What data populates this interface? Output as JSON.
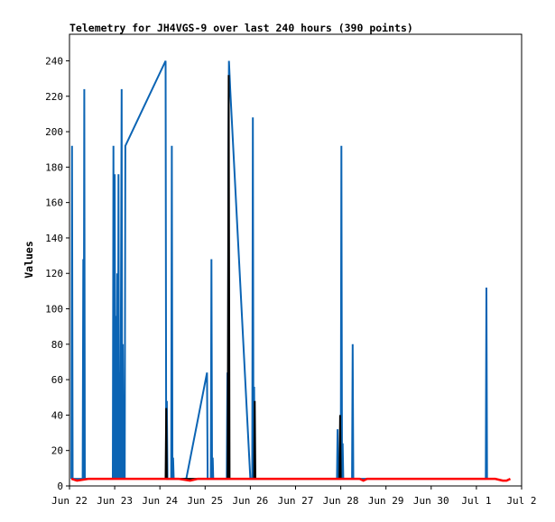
{
  "chart_data": {
    "type": "line",
    "title": "Telemetry for JH4VGS-9 over last 240 hours (390 points)",
    "xlabel": "",
    "ylabel": "Values",
    "xlim": [
      "2016-06-22",
      "2016-07-02"
    ],
    "ylim": [
      0,
      255
    ],
    "grid": false,
    "x_ticks": [
      {
        "label": "Jun 22",
        "date": "2016-06-22"
      },
      {
        "label": "Jun 23",
        "date": "2016-06-23"
      },
      {
        "label": "Jun 24",
        "date": "2016-06-24"
      },
      {
        "label": "Jun 25",
        "date": "2016-06-25"
      },
      {
        "label": "Jun 26",
        "date": "2016-06-26"
      },
      {
        "label": "Jun 27",
        "date": "2016-06-27"
      },
      {
        "label": "Jun 28",
        "date": "2016-06-28"
      },
      {
        "label": "Jun 29",
        "date": "2016-06-29"
      },
      {
        "label": "Jun 30",
        "date": "2016-06-30"
      },
      {
        "label": "Jul 1",
        "date": "2016-07-01"
      },
      {
        "label": "Jul 2",
        "date": "2016-07-02"
      }
    ],
    "y_ticks": [
      0,
      20,
      40,
      60,
      80,
      100,
      120,
      140,
      160,
      180,
      200,
      220,
      240
    ],
    "series": [
      {
        "color": "#0b64b4",
        "points": [
          [
            "2016-06-22 01:00",
            4
          ],
          [
            "2016-06-22 01:20",
            192
          ],
          [
            "2016-06-22 01:40",
            4
          ],
          [
            "2016-06-22 07:00",
            4
          ],
          [
            "2016-06-22 07:20",
            128
          ],
          [
            "2016-06-22 07:30",
            4
          ],
          [
            "2016-06-22 07:50",
            224
          ],
          [
            "2016-06-22 08:10",
            4
          ],
          [
            "2016-06-22 23:00",
            4
          ],
          [
            "2016-06-22 23:20",
            192
          ],
          [
            "2016-06-22 23:40",
            4
          ],
          [
            "2016-06-23 00:00",
            176
          ],
          [
            "2016-06-23 00:20",
            4
          ],
          [
            "2016-06-23 00:40",
            96
          ],
          [
            "2016-06-23 01:00",
            4
          ],
          [
            "2016-06-23 01:20",
            120
          ],
          [
            "2016-06-23 01:40",
            4
          ],
          [
            "2016-06-23 02:00",
            176
          ],
          [
            "2016-06-23 02:20",
            4
          ],
          [
            "2016-06-23 02:40",
            64
          ],
          [
            "2016-06-23 03:00",
            4
          ],
          [
            "2016-06-23 03:40",
            224
          ],
          [
            "2016-06-23 04:00",
            4
          ],
          [
            "2016-06-23 04:20",
            80
          ],
          [
            "2016-06-23 04:40",
            4
          ],
          [
            "2016-06-23 05:00",
            24
          ],
          [
            "2016-06-23 05:20",
            4
          ],
          [
            "2016-06-23 05:40",
            192
          ],
          [
            "2016-06-24 03:00",
            240
          ],
          [
            "2016-06-24 03:20",
            4
          ],
          [
            "2016-06-24 03:40",
            48
          ],
          [
            "2016-06-24 04:00",
            4
          ],
          [
            "2016-06-24 06:00",
            4
          ],
          [
            "2016-06-24 06:20",
            192
          ],
          [
            "2016-06-24 06:40",
            4
          ],
          [
            "2016-06-24 07:00",
            16
          ],
          [
            "2016-06-24 07:20",
            4
          ],
          [
            "2016-06-24 14:00",
            4
          ],
          [
            "2016-06-25 01:00",
            64
          ],
          [
            "2016-06-25 01:20",
            4
          ],
          [
            "2016-06-25 03:00",
            4
          ],
          [
            "2016-06-25 03:20",
            128
          ],
          [
            "2016-06-25 03:40",
            4
          ],
          [
            "2016-06-25 04:00",
            16
          ],
          [
            "2016-06-25 04:20",
            4
          ],
          [
            "2016-06-25 11:30",
            4
          ],
          [
            "2016-06-25 11:50",
            64
          ],
          [
            "2016-06-25 12:10",
            4
          ],
          [
            "2016-06-25 12:20",
            176
          ],
          [
            "2016-06-25 12:40",
            240
          ],
          [
            "2016-06-25 13:00",
            232
          ],
          [
            "2016-06-25 13:20",
            224
          ],
          [
            "2016-06-26 00:00",
            4
          ],
          [
            "2016-06-26 01:00",
            4
          ],
          [
            "2016-06-26 01:20",
            208
          ],
          [
            "2016-06-26 01:40",
            4
          ],
          [
            "2016-06-26 02:00",
            56
          ],
          [
            "2016-06-26 02:20",
            4
          ],
          [
            "2016-06-27 22:00",
            4
          ],
          [
            "2016-06-27 22:20",
            32
          ],
          [
            "2016-06-27 22:40",
            4
          ],
          [
            "2016-06-28 00:00",
            4
          ],
          [
            "2016-06-28 00:20",
            192
          ],
          [
            "2016-06-28 00:40",
            4
          ],
          [
            "2016-06-28 01:00",
            24
          ],
          [
            "2016-06-28 01:20",
            4
          ],
          [
            "2016-06-28 06:00",
            4
          ],
          [
            "2016-06-28 06:20",
            80
          ],
          [
            "2016-06-28 06:40",
            4
          ],
          [
            "2016-07-01 05:00",
            4
          ],
          [
            "2016-07-01 05:20",
            112
          ],
          [
            "2016-07-01 05:40",
            4
          ]
        ]
      },
      {
        "color": "#000000",
        "points": [
          [
            "2016-06-24 03:00",
            4
          ],
          [
            "2016-06-24 03:20",
            44
          ],
          [
            "2016-06-24 03:40",
            4
          ],
          [
            "2016-06-25 12:00",
            4
          ],
          [
            "2016-06-25 12:30",
            232
          ],
          [
            "2016-06-25 13:00",
            4
          ],
          [
            "2016-06-26 02:00",
            4
          ],
          [
            "2016-06-26 02:20",
            48
          ],
          [
            "2016-06-26 02:40",
            4
          ],
          [
            "2016-06-27 23:20",
            4
          ],
          [
            "2016-06-27 23:40",
            40
          ],
          [
            "2016-06-28 00:00",
            4
          ]
        ]
      },
      {
        "color": "#ff0000",
        "points": [
          [
            "2016-06-22 01:00",
            4
          ],
          [
            "2016-06-22 04:00",
            3
          ],
          [
            "2016-06-22 10:00",
            4
          ],
          [
            "2016-06-23 10:00",
            4
          ],
          [
            "2016-06-24 10:00",
            4
          ],
          [
            "2016-06-24 16:00",
            3
          ],
          [
            "2016-06-24 20:00",
            4
          ],
          [
            "2016-06-25 10:00",
            4
          ],
          [
            "2016-06-26 10:00",
            4
          ],
          [
            "2016-06-27 10:00",
            4
          ],
          [
            "2016-06-28 10:00",
            4
          ],
          [
            "2016-06-28 12:00",
            3
          ],
          [
            "2016-06-28 14:00",
            4
          ],
          [
            "2016-06-29 10:00",
            4
          ],
          [
            "2016-06-30 10:00",
            4
          ],
          [
            "2016-07-01 10:00",
            4
          ],
          [
            "2016-07-01 14:00",
            3
          ],
          [
            "2016-07-01 16:00",
            3
          ],
          [
            "2016-07-01 18:00",
            4
          ]
        ]
      }
    ]
  }
}
